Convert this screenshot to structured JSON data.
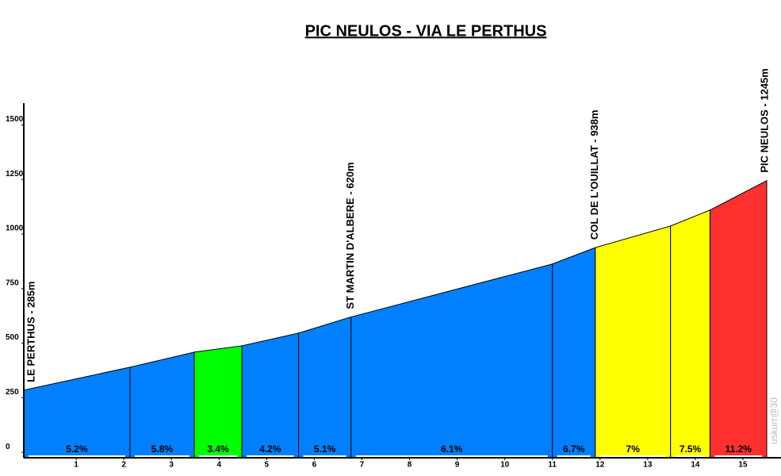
{
  "chart_data": {
    "type": "profile",
    "title": "PIC NEULOS - VIA LE PERTHUS",
    "x": [
      -0.1,
      2.13,
      3.48,
      4.48,
      5.67,
      6.77,
      11.0,
      11.9,
      13.48,
      14.31,
      15.5
    ],
    "values": [
      285,
      390,
      459,
      488,
      546,
      620,
      863,
      938,
      1037,
      1110,
      1245
    ],
    "segments": [
      {
        "label": "5.2%",
        "color": "#0080ff"
      },
      {
        "label": "5.8%",
        "color": "#0080ff"
      },
      {
        "label": "3.4%",
        "color": "#00ff00"
      },
      {
        "label": "4.2%",
        "color": "#0080ff"
      },
      {
        "label": "5.1%",
        "color": "#0080ff"
      },
      {
        "label": "6.1%",
        "color": "#0080ff"
      },
      {
        "label": "6.7%",
        "color": "#0080ff"
      },
      {
        "label": "7%",
        "color": "#ffff00"
      },
      {
        "label": "7.5%",
        "color": "#ffff00"
      },
      {
        "label": "11.2%",
        "color": "#ff3030"
      }
    ],
    "annotations": [
      {
        "index": 0,
        "text": "LE PERTHUS - 285m"
      },
      {
        "index": 5,
        "text": "ST MARTIN D'ALBERE - 620m"
      },
      {
        "index": 7,
        "text": "COL DE L'OUILLAT - 938m"
      },
      {
        "index": 10,
        "text": "PIC NEULOS - 1245m"
      }
    ],
    "watermark": "uskurr@30",
    "xlim": [
      -0.1,
      15.5
    ],
    "ylim": [
      -25,
      1600
    ],
    "xticks": [
      1,
      2,
      3,
      4,
      5,
      6,
      7,
      8,
      9,
      10,
      11,
      12,
      13,
      14,
      15
    ],
    "yticks": [
      0,
      250,
      500,
      750,
      1000,
      1250,
      1500
    ]
  }
}
